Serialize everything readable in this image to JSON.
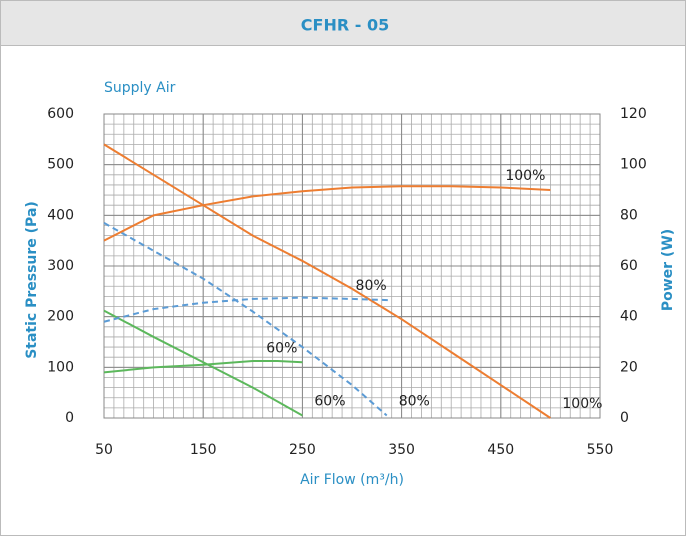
{
  "chart_data": {
    "type": "line",
    "title": "CFHR - 05",
    "subtitle": "Supply Air",
    "xlabel": "Air Flow (m³/h)",
    "ylabel": "Static Pressure (Pa)",
    "y2label": "Power (W)",
    "xlim": [
      50,
      550
    ],
    "xticks": [
      50,
      150,
      250,
      350,
      450,
      550
    ],
    "ylim": [
      0,
      600
    ],
    "yticks": [
      0,
      100,
      200,
      300,
      400,
      500,
      600
    ],
    "y2lim": [
      0,
      120
    ],
    "y2ticks": [
      0,
      20,
      40,
      60,
      80,
      100,
      120
    ],
    "grid": true,
    "minor_grid": {
      "x": 10,
      "y": 20
    },
    "series": [
      {
        "name": "100%",
        "color": "#ed7d31",
        "dash": false,
        "axis": "y",
        "x": [
          50,
          100,
          150,
          200,
          250,
          300,
          350,
          400,
          450,
          500
        ],
        "values": [
          540,
          480,
          420,
          360,
          310,
          255,
          195,
          130,
          65,
          0
        ]
      },
      {
        "name": "80%",
        "color": "#5b9bd5",
        "dash": true,
        "axis": "y",
        "x": [
          50,
          100,
          150,
          200,
          250,
          300,
          335
        ],
        "values": [
          385,
          330,
          275,
          210,
          140,
          65,
          5
        ]
      },
      {
        "name": "60%",
        "color": "#5cb85c",
        "dash": false,
        "axis": "y",
        "x": [
          50,
          100,
          150,
          200,
          250
        ],
        "values": [
          212,
          160,
          110,
          60,
          5
        ]
      },
      {
        "name": "100%",
        "color": "#ed7d31",
        "dash": false,
        "axis": "y2",
        "x": [
          50,
          100,
          150,
          200,
          250,
          300,
          350,
          400,
          450,
          500
        ],
        "values": [
          70,
          80,
          84,
          87.5,
          89.5,
          91,
          91.5,
          91.5,
          91,
          90
        ]
      },
      {
        "name": "80%",
        "color": "#5b9bd5",
        "dash": true,
        "axis": "y2",
        "x": [
          50,
          100,
          150,
          200,
          250,
          300,
          340
        ],
        "values": [
          38,
          43,
          45.5,
          47,
          47.5,
          47,
          46.5
        ]
      },
      {
        "name": "60%",
        "color": "#5cb85c",
        "dash": false,
        "axis": "y2",
        "x": [
          50,
          100,
          150,
          200,
          225,
          250
        ],
        "values": [
          18,
          20,
          21,
          22.5,
          22.5,
          22
        ]
      }
    ]
  }
}
